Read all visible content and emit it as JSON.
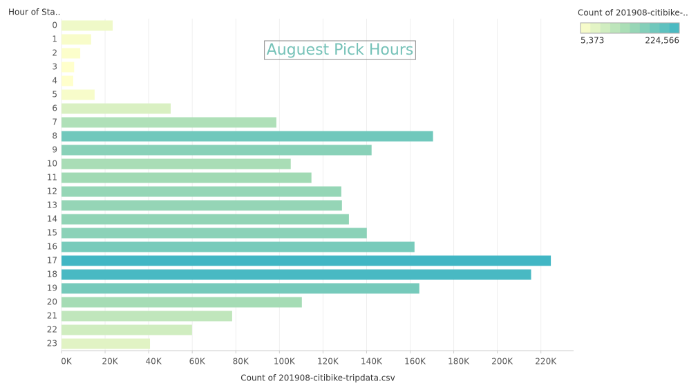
{
  "chart_data": {
    "type": "bar",
    "orientation": "horizontal",
    "title": "Auguest Pick Hours",
    "y_label": "Hour of Sta..",
    "x_label": "Count of 201908-citibike-tripdata.csv",
    "categories": [
      "0",
      "1",
      "2",
      "3",
      "4",
      "5",
      "6",
      "7",
      "8",
      "9",
      "10",
      "11",
      "12",
      "13",
      "14",
      "15",
      "16",
      "17",
      "18",
      "19",
      "20",
      "21",
      "22",
      "23"
    ],
    "values": [
      23500,
      13600,
      8600,
      5800,
      5373,
      15200,
      50100,
      98600,
      170500,
      142300,
      105200,
      114700,
      128400,
      128700,
      131900,
      140100,
      162000,
      224566,
      215500,
      164200,
      110300,
      78300,
      59900,
      40600
    ],
    "xlim": [
      0,
      235000
    ],
    "xticks": [
      {
        "value": 0,
        "label": "0K"
      },
      {
        "value": 20000,
        "label": "20K"
      },
      {
        "value": 40000,
        "label": "40K"
      },
      {
        "value": 60000,
        "label": "60K"
      },
      {
        "value": 80000,
        "label": "80K"
      },
      {
        "value": 100000,
        "label": "100K"
      },
      {
        "value": 120000,
        "label": "120K"
      },
      {
        "value": 140000,
        "label": "140K"
      },
      {
        "value": 160000,
        "label": "160K"
      },
      {
        "value": 180000,
        "label": "180K"
      },
      {
        "value": 200000,
        "label": "200K"
      },
      {
        "value": 220000,
        "label": "220K"
      }
    ],
    "grid": true,
    "color_scale": [
      "#ffffcc",
      "#a1dab4",
      "#41b6c4"
    ],
    "legend": {
      "title": "Count of 201908-citibike-..",
      "position": "top-right",
      "min": {
        "value": 5373,
        "label": "5,373"
      },
      "max": {
        "value": 224566,
        "label": "224,566"
      },
      "steps": 10
    }
  }
}
